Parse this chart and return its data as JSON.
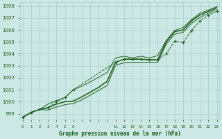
{
  "title": "Graphe pression niveau de la mer (hPa)",
  "bg_color": "#cce8e4",
  "grid_color": "#aacccc",
  "line_color": "#1a5c1a",
  "text_color": "#1a5c1a",
  "ylim": [
    998.5,
    1008.3
  ],
  "yticks": [
    999,
    1000,
    1001,
    1002,
    1003,
    1004,
    1005,
    1006,
    1007,
    1008
  ],
  "xlim": [
    -0.3,
    23.3
  ],
  "xticks": [
    0,
    1,
    2,
    3,
    4,
    5,
    6,
    11,
    12,
    13,
    14,
    15,
    16,
    17,
    18,
    19,
    20,
    21,
    22,
    23
  ],
  "all_x": [
    0,
    1,
    2,
    3,
    4,
    5,
    6,
    7,
    8,
    9,
    10,
    11,
    12,
    13,
    14,
    15,
    16,
    17,
    18,
    19,
    20,
    21,
    22,
    23
  ],
  "line_main": [
    998.7,
    999.1,
    999.35,
    999.5,
    999.8,
    1000.0,
    1000.05,
    1000.4,
    1000.8,
    1001.2,
    1001.7,
    1003.3,
    1003.55,
    1003.55,
    1003.55,
    1003.5,
    1003.5,
    1005.0,
    1005.85,
    1006.0,
    1006.75,
    1007.25,
    1007.55,
    1007.85
  ],
  "line_upper": [
    998.7,
    999.1,
    999.35,
    999.8,
    1000.1,
    1000.35,
    1001.0,
    1001.3,
    1001.65,
    1002.05,
    1002.45,
    1003.65,
    1003.8,
    1003.65,
    1003.8,
    1003.65,
    1003.85,
    1005.1,
    1005.95,
    1006.2,
    1006.85,
    1007.4,
    1007.65,
    1007.95
  ],
  "line_lower": [
    998.7,
    999.1,
    999.35,
    999.3,
    999.55,
    999.75,
    999.85,
    1000.15,
    1000.55,
    1000.95,
    1001.35,
    1003.05,
    1003.25,
    1003.3,
    1003.3,
    1003.3,
    1003.3,
    1004.8,
    1005.65,
    1005.8,
    1006.55,
    1007.05,
    1007.4,
    1007.7
  ],
  "dot_x": [
    0,
    1,
    2,
    3,
    4,
    5,
    6,
    11,
    12,
    13,
    14,
    15,
    16,
    17,
    18,
    19,
    20,
    21,
    22,
    23
  ],
  "line_dots": [
    998.7,
    999.1,
    999.35,
    999.5,
    1000.0,
    1000.35,
    1001.0,
    1003.3,
    1003.55,
    1003.55,
    1003.55,
    1003.5,
    1003.5,
    1004.0,
    1005.05,
    1004.95,
    1005.95,
    1006.75,
    1007.25,
    1007.55
  ]
}
